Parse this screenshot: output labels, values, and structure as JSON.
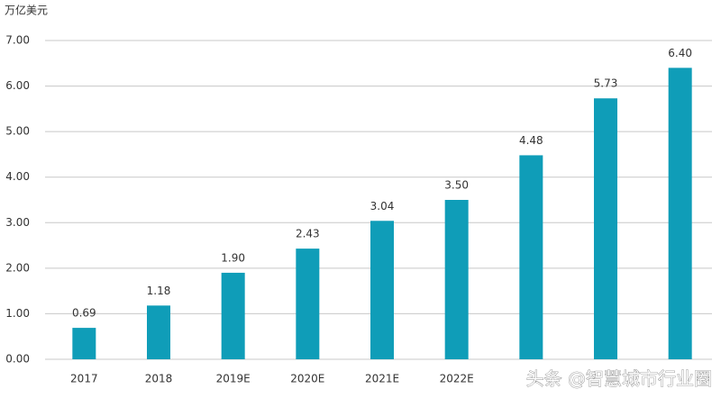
{
  "chart_data": {
    "type": "bar",
    "y_label": "万亿美元",
    "categories": [
      "2017",
      "2018",
      "2019E",
      "2020E",
      "2021E",
      "2022E",
      null,
      null,
      null
    ],
    "values": [
      0.69,
      1.18,
      1.9,
      2.43,
      3.04,
      3.5,
      4.48,
      5.73,
      6.4
    ],
    "value_labels": [
      "0.69",
      "1.18",
      "1.90",
      "2.43",
      "3.04",
      "3.50",
      "4.48",
      "5.73",
      "6.40"
    ],
    "color": "#0f9db8",
    "ylim": [
      0,
      7
    ],
    "yticks": [
      {
        "value": 0,
        "label": "0.00"
      },
      {
        "value": 1,
        "label": "1.00"
      },
      {
        "value": 2,
        "label": "2.00"
      },
      {
        "value": 3,
        "label": "3.00"
      },
      {
        "value": 4,
        "label": "4.00"
      },
      {
        "value": 5,
        "label": "5.00"
      },
      {
        "value": 6,
        "label": "6.00"
      },
      {
        "value": 7,
        "label": "7.00"
      }
    ],
    "grid": true,
    "watermark": "头条 @智慧城市行业圈"
  }
}
